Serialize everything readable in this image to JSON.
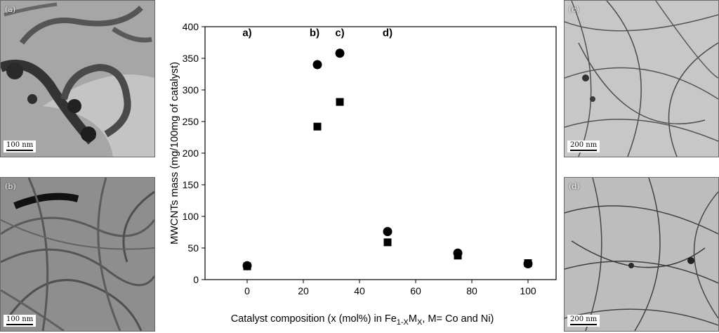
{
  "panels": [
    {
      "id": "a",
      "tag": "(a)",
      "scale_label": "100 nm"
    },
    {
      "id": "b",
      "tag": "(b)",
      "scale_label": "100 nm"
    },
    {
      "id": "c",
      "tag": "(c)",
      "scale_label": "200 nm"
    },
    {
      "id": "d",
      "tag": "(d)",
      "scale_label": "200 nm"
    }
  ],
  "chart_data": {
    "type": "scatter",
    "xlabel_prefix": "Catalyst composition (x (mol%) in Fe",
    "xlabel_sub1": "1-X",
    "xlabel_mid": "M",
    "xlabel_sub2": "X",
    "xlabel_suffix": ", M= Co and Ni)",
    "ylabel": "MWCNTs mass (mg/100mg of catalyst)",
    "xlim": [
      -15,
      110
    ],
    "ylim": [
      0,
      400
    ],
    "xticks": [
      0,
      20,
      40,
      60,
      80,
      100
    ],
    "yticks": [
      0,
      50,
      100,
      150,
      200,
      250,
      300,
      350,
      400
    ],
    "grid": false,
    "series": [
      {
        "marker": "square",
        "color": "#000000",
        "x": [
          0,
          25,
          33,
          50,
          75,
          100
        ],
        "y": [
          21,
          242,
          281,
          59,
          38,
          26
        ]
      },
      {
        "marker": "circle",
        "color": "#000000",
        "x": [
          0,
          25,
          33,
          50,
          75,
          100
        ],
        "y": [
          22,
          340,
          358,
          76,
          42,
          25
        ]
      }
    ],
    "annotations": [
      {
        "text": "a)",
        "x": 0,
        "y": 385
      },
      {
        "text": "b)",
        "x": 24,
        "y": 385
      },
      {
        "text": "c)",
        "x": 33,
        "y": 385
      },
      {
        "text": "d)",
        "x": 50,
        "y": 385
      }
    ]
  }
}
